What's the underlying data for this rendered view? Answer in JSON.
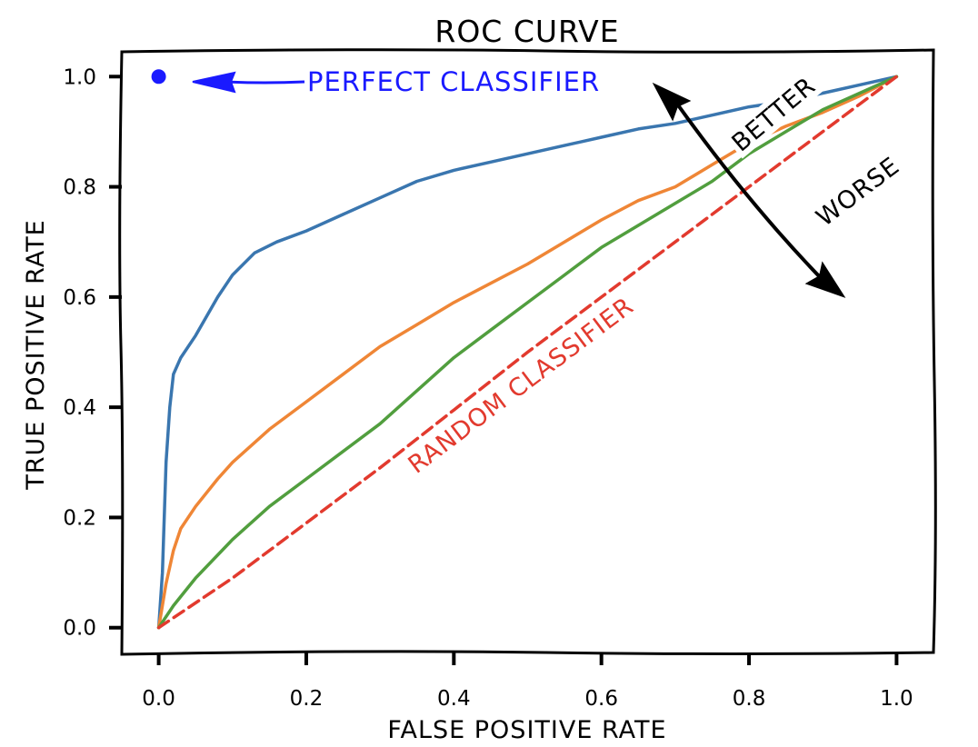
{
  "chart_data": {
    "type": "line",
    "title": "ROC CURVE",
    "xlabel": "FALSE POSITIVE RATE",
    "ylabel": "TRUE POSITIVE RATE",
    "xlim": [
      -0.05,
      1.05
    ],
    "ylim": [
      -0.045,
      1.045
    ],
    "xticks": [
      0.0,
      0.2,
      0.4,
      0.6,
      0.8,
      1.0
    ],
    "xtick_labels": [
      "0.0",
      "0.2",
      "0.4",
      "0.6",
      "0.8",
      "1.0"
    ],
    "yticks": [
      0.0,
      0.2,
      0.4,
      0.6,
      0.8,
      1.0
    ],
    "ytick_labels": [
      "0.0",
      "0.2",
      "0.4",
      "0.6",
      "0.8",
      "1.0"
    ],
    "grid": false,
    "series": [
      {
        "color": "#3a76af",
        "x": [
          0.0,
          0.005,
          0.01,
          0.015,
          0.02,
          0.03,
          0.05,
          0.08,
          0.1,
          0.13,
          0.16,
          0.2,
          0.25,
          0.3,
          0.35,
          0.4,
          0.45,
          0.5,
          0.55,
          0.6,
          0.65,
          0.7,
          0.75,
          0.8,
          0.85,
          0.9,
          0.95,
          1.0
        ],
        "y": [
          0.0,
          0.1,
          0.3,
          0.4,
          0.46,
          0.49,
          0.53,
          0.6,
          0.64,
          0.68,
          0.7,
          0.72,
          0.75,
          0.78,
          0.81,
          0.83,
          0.845,
          0.86,
          0.875,
          0.89,
          0.905,
          0.915,
          0.93,
          0.945,
          0.955,
          0.97,
          0.985,
          1.0
        ]
      },
      {
        "color": "#ef8636",
        "x": [
          0.0,
          0.01,
          0.02,
          0.03,
          0.05,
          0.08,
          0.1,
          0.15,
          0.2,
          0.25,
          0.3,
          0.35,
          0.4,
          0.45,
          0.5,
          0.55,
          0.6,
          0.65,
          0.7,
          0.75,
          0.8,
          0.85,
          0.9,
          0.95,
          1.0
        ],
        "y": [
          0.0,
          0.08,
          0.14,
          0.18,
          0.22,
          0.27,
          0.3,
          0.36,
          0.41,
          0.46,
          0.51,
          0.55,
          0.59,
          0.625,
          0.66,
          0.7,
          0.74,
          0.775,
          0.8,
          0.84,
          0.88,
          0.91,
          0.935,
          0.965,
          1.0
        ]
      },
      {
        "color": "#519e3e",
        "x": [
          0.0,
          0.02,
          0.05,
          0.1,
          0.15,
          0.2,
          0.25,
          0.3,
          0.35,
          0.4,
          0.45,
          0.5,
          0.55,
          0.6,
          0.65,
          0.7,
          0.75,
          0.8,
          0.85,
          0.9,
          0.95,
          1.0
        ],
        "y": [
          0.0,
          0.04,
          0.09,
          0.16,
          0.22,
          0.27,
          0.32,
          0.37,
          0.43,
          0.49,
          0.54,
          0.59,
          0.64,
          0.69,
          0.73,
          0.77,
          0.81,
          0.86,
          0.9,
          0.94,
          0.97,
          1.0
        ]
      },
      {
        "color": "#e23a2e",
        "dashed": true,
        "x": [
          0.0,
          0.1,
          0.2,
          0.3,
          0.4,
          0.5,
          0.6,
          0.7,
          0.8,
          0.9,
          1.0
        ],
        "y": [
          0.0,
          0.09,
          0.19,
          0.29,
          0.395,
          0.5,
          0.6,
          0.7,
          0.8,
          0.9,
          1.0
        ]
      }
    ],
    "points": [
      {
        "x": 0.0,
        "y": 1.0,
        "color": "#1a1aff"
      }
    ],
    "annotations": [
      {
        "text": "PERFECT CLASSIFIER",
        "color": "#1a1aff"
      },
      {
        "text": "RANDOM CLASSIFIER",
        "color": "#e23a2e"
      },
      {
        "text": "BETTER",
        "color": "#000000"
      },
      {
        "text": "WORSE",
        "color": "#000000"
      }
    ]
  }
}
